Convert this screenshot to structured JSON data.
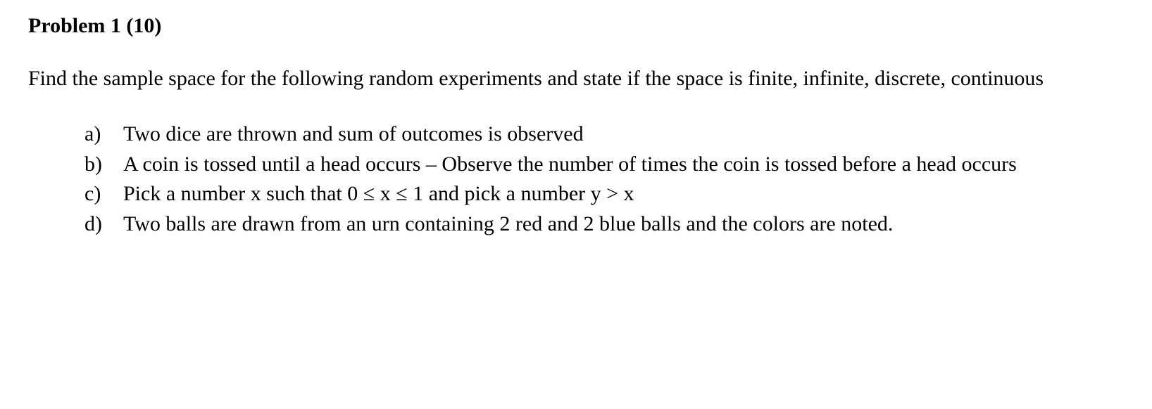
{
  "title": "Problem 1 (10)",
  "description": "Find the sample space for the following random experiments and state if the space is finite, infinite, discrete, continuous",
  "items": [
    {
      "marker": "a)",
      "text": "Two dice are thrown and sum of outcomes is observed"
    },
    {
      "marker": "b)",
      "text": "A coin is tossed until a head occurs – Observe the number of times the coin is tossed before a head occurs"
    },
    {
      "marker": "c)",
      "text": "Pick a number x such that 0 ≤ x ≤ 1 and pick a number y > x"
    },
    {
      "marker": "d)",
      "text": "Two balls are drawn from an urn containing 2 red and 2 blue balls and the colors are noted."
    }
  ],
  "colors": {
    "background": "#ffffff",
    "text": "#000000"
  },
  "typography": {
    "font_family": "Times New Roman",
    "title_size": 30,
    "body_size": 30,
    "title_weight": "bold"
  }
}
